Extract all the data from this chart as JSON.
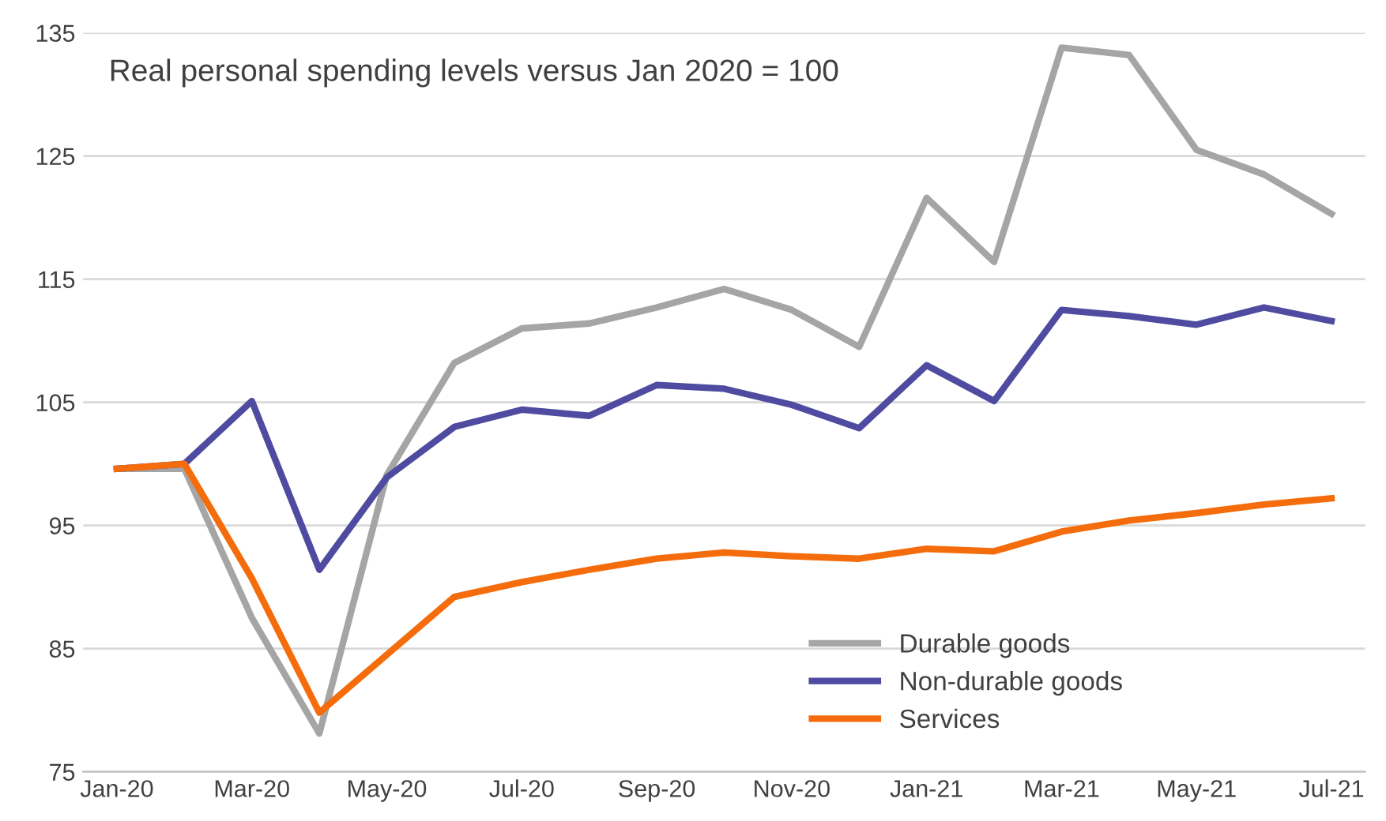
{
  "chart_data": {
    "type": "line",
    "title": "Real personal spending levels versus Jan 2020 = 100",
    "categories": [
      "Jan-20",
      null,
      "Mar-20",
      null,
      "May-20",
      null,
      "Jul-20",
      null,
      "Sep-20",
      null,
      "Nov-20",
      null,
      "Jan-21",
      null,
      "Mar-21",
      null,
      "May-21",
      null,
      "Jul-21"
    ],
    "series": [
      {
        "name": "Durable goods",
        "color": "#a5a5a5",
        "values": [
          99.6,
          99.6,
          87.5,
          78.1,
          99.1,
          108.2,
          111.0,
          111.4,
          112.7,
          114.2,
          112.5,
          109.5,
          121.6,
          116.4,
          133.8,
          133.2,
          125.5,
          123.5,
          120.3
        ]
      },
      {
        "name": "Non-durable goods",
        "color": "#4e4ba0",
        "values": [
          99.6,
          100.0,
          105.1,
          91.4,
          98.9,
          103.0,
          104.4,
          103.9,
          106.4,
          106.1,
          104.8,
          102.9,
          108.0,
          105.1,
          112.5,
          112.0,
          111.3,
          112.7,
          111.6
        ]
      },
      {
        "name": "Services",
        "color": "#f46c0b",
        "values": [
          99.6,
          100.0,
          90.7,
          79.8,
          84.5,
          89.2,
          90.4,
          91.4,
          92.3,
          92.8,
          92.5,
          92.3,
          93.1,
          92.9,
          94.5,
          95.4,
          96.0,
          96.7,
          97.2
        ]
      }
    ],
    "ylim": [
      75,
      135
    ],
    "yticks": [
      75,
      85,
      95,
      105,
      115,
      125,
      135
    ],
    "grid": "y",
    "legend": "bottom right",
    "marker": "none",
    "line_style": "solid"
  }
}
